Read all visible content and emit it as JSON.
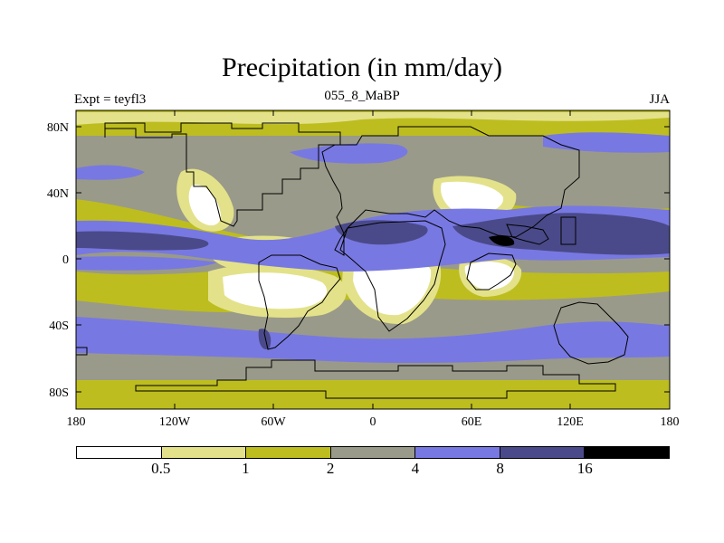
{
  "title": "Precipitation (in mm/day)",
  "subtitle_left": "Expt = teyfl3",
  "subtitle_center": "055_8_MaBP",
  "subtitle_right": "JJA",
  "y_ticks": [
    "80N",
    "40N",
    "0",
    "40S",
    "80S"
  ],
  "x_ticks": [
    "180",
    "120W",
    "60W",
    "0",
    "60E",
    "120E",
    "180"
  ],
  "colors": {
    "c0": "#ffffff",
    "c1": "#e3e28a",
    "c2": "#bdbd1f",
    "c3": "#9a9a8a",
    "c4": "#7878e2",
    "c5": "#4a4a8a",
    "c6": "#000000"
  },
  "legend": {
    "colors": [
      "#ffffff",
      "#e3e28a",
      "#bdbd1f",
      "#9a9a8a",
      "#7878e2",
      "#4a4a8a",
      "#000000"
    ],
    "labels": [
      "0.5",
      "1",
      "2",
      "4",
      "8",
      "16"
    ]
  }
}
